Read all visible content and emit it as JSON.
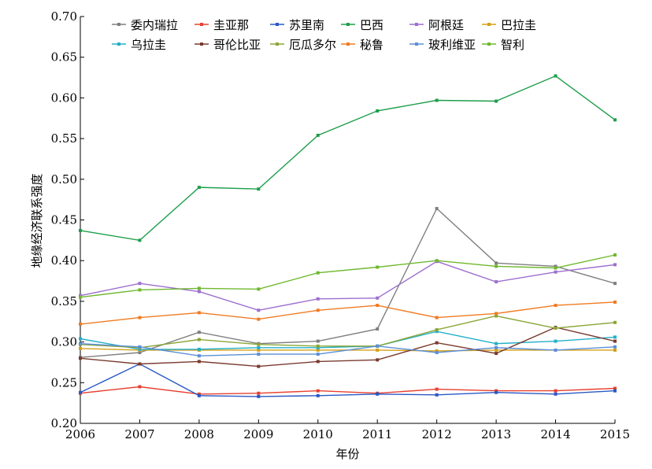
{
  "chart_data": {
    "type": "line",
    "xlabel": "年份",
    "ylabel": "地缘经济联系强度",
    "x": [
      2006,
      2007,
      2008,
      2009,
      2010,
      2011,
      2012,
      2013,
      2014,
      2015
    ],
    "ylim": [
      0.2,
      0.7
    ],
    "yticks": [
      "0.20",
      "0.25",
      "0.30",
      "0.35",
      "0.40",
      "0.45",
      "0.50",
      "0.55",
      "0.60",
      "0.65",
      "0.70"
    ],
    "xticks": [
      "2006",
      "2007",
      "2008",
      "2009",
      "2010",
      "2011",
      "2012",
      "2013",
      "2014",
      "2015"
    ],
    "legend_position": "top",
    "series": [
      {
        "name": "委内瑞拉",
        "color": "#7f7f7f",
        "values": [
          0.281,
          0.287,
          0.312,
          0.298,
          0.301,
          0.316,
          0.464,
          0.397,
          0.393,
          0.372
        ]
      },
      {
        "name": "圭亚那",
        "color": "#e8402f",
        "values": [
          0.237,
          0.245,
          0.236,
          0.237,
          0.24,
          0.237,
          0.242,
          0.24,
          0.24,
          0.243
        ]
      },
      {
        "name": "苏里南",
        "color": "#2a58c4",
        "values": [
          0.238,
          0.273,
          0.234,
          0.233,
          0.234,
          0.236,
          0.235,
          0.238,
          0.236,
          0.24
        ]
      },
      {
        "name": "巴西",
        "color": "#1e9e4a",
        "values": [
          0.437,
          0.425,
          0.49,
          0.488,
          0.554,
          0.584,
          0.597,
          0.596,
          0.627,
          0.573
        ]
      },
      {
        "name": "阿根廷",
        "color": "#9d6fcf",
        "values": [
          0.357,
          0.372,
          0.362,
          0.339,
          0.353,
          0.354,
          0.399,
          0.374,
          0.386,
          0.395
        ]
      },
      {
        "name": "巴拉圭",
        "color": "#d4a017",
        "values": [
          0.292,
          0.29,
          0.29,
          0.29,
          0.29,
          0.29,
          0.289,
          0.29,
          0.29,
          0.29
        ]
      },
      {
        "name": "乌拉圭",
        "color": "#23b0c8",
        "values": [
          0.304,
          0.291,
          0.291,
          0.293,
          0.293,
          0.295,
          0.313,
          0.298,
          0.301,
          0.306
        ]
      },
      {
        "name": "哥伦比亚",
        "color": "#7a3b2e",
        "values": [
          0.28,
          0.273,
          0.276,
          0.27,
          0.276,
          0.278,
          0.299,
          0.286,
          0.318,
          0.301
        ]
      },
      {
        "name": "厄瓜多尔",
        "color": "#8aa637",
        "values": [
          0.297,
          0.293,
          0.303,
          0.297,
          0.295,
          0.295,
          0.315,
          0.332,
          0.317,
          0.324
        ]
      },
      {
        "name": "秘鲁",
        "color": "#f07b22",
        "values": [
          0.322,
          0.33,
          0.336,
          0.328,
          0.339,
          0.345,
          0.33,
          0.335,
          0.345,
          0.349
        ]
      },
      {
        "name": "玻利维亚",
        "color": "#5b8fd6",
        "values": [
          0.298,
          0.294,
          0.283,
          0.285,
          0.285,
          0.295,
          0.287,
          0.293,
          0.29,
          0.294
        ]
      },
      {
        "name": "智利",
        "color": "#6fb82f",
        "values": [
          0.355,
          0.364,
          0.366,
          0.365,
          0.385,
          0.392,
          0.4,
          0.393,
          0.391,
          0.407
        ]
      }
    ]
  }
}
